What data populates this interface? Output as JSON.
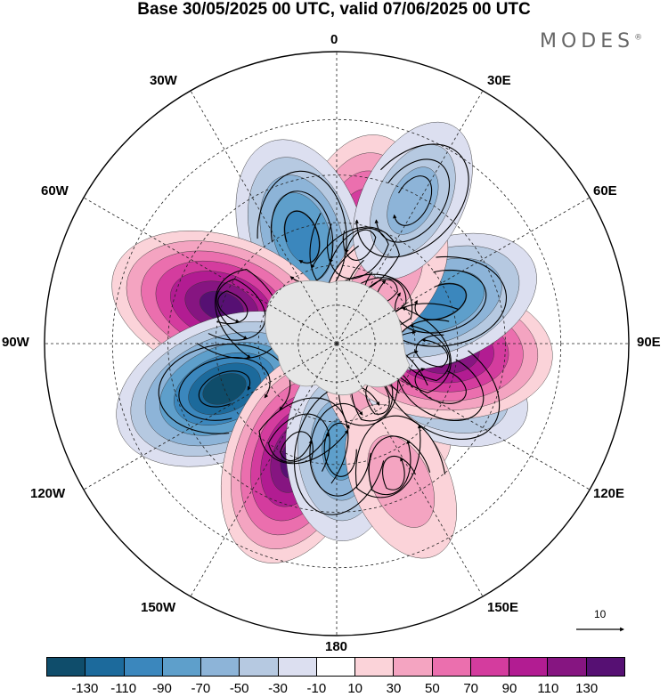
{
  "title": "Base 30/05/2025 00 UTC, valid 07/06/2025 00 UTC",
  "logo": {
    "text": "MODES",
    "mark": "®"
  },
  "longitude_labels": {
    "lon_0": "0",
    "lon_30e": "30E",
    "lon_60e": "60E",
    "lon_90e": "90E",
    "lon_120e": "120E",
    "lon_150e": "150E",
    "lon_180": "180",
    "lon_150w": "150W",
    "lon_120w": "120W",
    "lon_90w": "90W",
    "lon_60w": "60W",
    "lon_30w": "30W"
  },
  "reference_vector": {
    "value": "10"
  },
  "map": {
    "projection": "south polar stereographic",
    "anomaly_centers": [
      {
        "longitude": 12,
        "latitude": -48,
        "value": 100
      },
      {
        "longitude": -18,
        "latitude": -48,
        "value": -100
      },
      {
        "longitude": -72,
        "latitude": -45,
        "value": 140
      },
      {
        "longitude": -112,
        "latitude": -45,
        "value": -140
      },
      {
        "longitude": -160,
        "latitude": -45,
        "value": 130
      },
      {
        "longitude": 178,
        "latitude": -50,
        "value": -70
      },
      {
        "longitude": 140,
        "latitude": -60,
        "value": 40
      },
      {
        "longitude": 112,
        "latitude": -48,
        "value": -70
      },
      {
        "longitude": 94,
        "latitude": -50,
        "value": 130
      },
      {
        "longitude": 68,
        "latitude": -48,
        "value": -100
      },
      {
        "longitude": 38,
        "latitude": -60,
        "value": 40
      },
      {
        "longitude": 28,
        "latitude": -32,
        "value": -50
      },
      {
        "longitude": 155,
        "latitude": -35,
        "value": 40
      }
    ]
  },
  "colorbar": {
    "levels": [
      "-130",
      "-110",
      "-90",
      "-70",
      "-50",
      "-30",
      "-10",
      "10",
      "30",
      "50",
      "70",
      "90",
      "110",
      "130"
    ],
    "colors": [
      "#0f4d6b",
      "#1c6a9c",
      "#3b87bd",
      "#5e9fcb",
      "#8db4d8",
      "#b6c9e1",
      "#dcdff0",
      "#ffffff",
      "#fbd3d9",
      "#f4a4c1",
      "#eb6fae",
      "#d43c9e",
      "#b21c92",
      "#861581",
      "#561073"
    ]
  }
}
